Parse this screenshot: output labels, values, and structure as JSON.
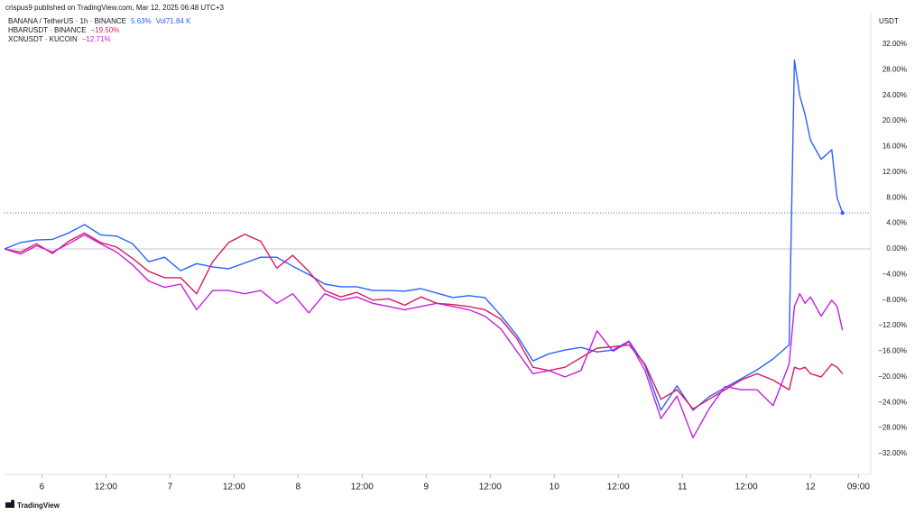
{
  "header": "crispus9 published on TradingView.com, Mar 12, 2025 06:48 UTC+3",
  "footer": "TradingView",
  "chart_data": {
    "type": "line",
    "y_axis_label": "USDT",
    "xlim": [
      -7,
      155.3
    ],
    "xticks": [
      {
        "value": 0,
        "label": "6"
      },
      {
        "value": 12,
        "label": "12:00"
      },
      {
        "value": 24,
        "label": "7"
      },
      {
        "value": 36,
        "label": "12:00"
      },
      {
        "value": 48,
        "label": "8"
      },
      {
        "value": 60,
        "label": "12:00"
      },
      {
        "value": 72,
        "label": "9"
      },
      {
        "value": 84,
        "label": "12:00"
      },
      {
        "value": 96,
        "label": "10"
      },
      {
        "value": 108,
        "label": "12:00"
      },
      {
        "value": 120,
        "label": "11"
      },
      {
        "value": 132,
        "label": "12:00"
      },
      {
        "value": 144,
        "label": "12"
      },
      {
        "value": 153,
        "label": "09:00"
      }
    ],
    "ylim": [
      -32,
      32
    ],
    "yticks": [
      {
        "value": 32,
        "label": "32.00%"
      },
      {
        "value": 28,
        "label": "28.00%"
      },
      {
        "value": 24,
        "label": "24.00%"
      },
      {
        "value": 20,
        "label": "20.00%"
      },
      {
        "value": 16,
        "label": "16.00%"
      },
      {
        "value": 12,
        "label": "12.00%"
      },
      {
        "value": 8,
        "label": "8.00%"
      },
      {
        "value": 4,
        "label": "4.00%"
      },
      {
        "value": 0,
        "label": "0.00%"
      },
      {
        "value": -4,
        "label": "−4.00%"
      },
      {
        "value": -8,
        "label": "−8.00%"
      },
      {
        "value": -12,
        "label": "−12.00%"
      },
      {
        "value": -16,
        "label": "−16.00%"
      },
      {
        "value": -20,
        "label": "−20.00%"
      },
      {
        "value": -24,
        "label": "−24.00%"
      },
      {
        "value": -28,
        "label": "−28.00%"
      },
      {
        "value": -32,
        "label": "−32.00%"
      }
    ],
    "x": [
      -7,
      -4,
      -1,
      2,
      5,
      8,
      11,
      14,
      17,
      20,
      23,
      26,
      29,
      32,
      35,
      38,
      41,
      44,
      47,
      50,
      53,
      56,
      59,
      62,
      65,
      68,
      71,
      74,
      77,
      80,
      83,
      86,
      89,
      92,
      95,
      98,
      101,
      104,
      107,
      110,
      113,
      116,
      119,
      122,
      125,
      128,
      131,
      134,
      137,
      140,
      141,
      142,
      143,
      144,
      146,
      148,
      149,
      150
    ],
    "series": [
      {
        "name": "BANANA / TetherUS · 1h · BINANCE",
        "color": "#2962ff",
        "legend_value": "5.63%",
        "volume_title": "Vol",
        "volume_label": "71.84 K",
        "values": [
          0,
          1,
          1.4,
          1.5,
          2.5,
          3.8,
          2.2,
          2,
          0.8,
          -2,
          -1.3,
          -3.4,
          -2.3,
          -2.8,
          -3.1,
          -2.2,
          -1.3,
          -1.3,
          -2.7,
          -4,
          -5.5,
          -5.9,
          -5.9,
          -6.5,
          -6.5,
          -6.6,
          -6.2,
          -6.9,
          -7.6,
          -7.3,
          -7.6,
          -10.4,
          -13.5,
          -17.5,
          -16.4,
          -15.8,
          -15.4,
          -16.1,
          -15.8,
          -14.4,
          -18.2,
          -25.2,
          -21.4,
          -25.2,
          -23.1,
          -21.7,
          -20.3,
          -18.9,
          -17.2,
          -15,
          29.5,
          24,
          21,
          17,
          14,
          15.5,
          8,
          5.63
        ]
      },
      {
        "name": "HBARUSDT · BINANCE",
        "color": "#d81b60",
        "legend_value": "−19.50%",
        "values": [
          0,
          -0.5,
          0.8,
          -0.7,
          1.2,
          2.5,
          1,
          0.3,
          -1.5,
          -3.5,
          -4.5,
          -4.5,
          -7,
          -2,
          1,
          2.3,
          1.2,
          -3,
          -1,
          -3.5,
          -6.5,
          -7.5,
          -6.8,
          -8,
          -7.8,
          -8.8,
          -7.5,
          -8.5,
          -8.7,
          -9,
          -9.5,
          -11,
          -14,
          -18.5,
          -19,
          -18.5,
          -17,
          -15.5,
          -15.3,
          -15,
          -18,
          -23.5,
          -22,
          -25,
          -23.5,
          -22,
          -20.5,
          -19.5,
          -20.5,
          -22,
          -18.5,
          -18.8,
          -18.5,
          -19.5,
          -20,
          -18,
          -18.5,
          -19.5
        ]
      },
      {
        "name": "XCNUSDT · KUCOIN",
        "color": "#c41fe0",
        "legend_value": "−12.71%",
        "values": [
          0,
          -0.8,
          0.5,
          -0.5,
          0.8,
          2.2,
          0.8,
          -0.5,
          -2.5,
          -5,
          -6,
          -5.5,
          -9.5,
          -6.5,
          -6.5,
          -7,
          -6.5,
          -8.5,
          -7,
          -10,
          -7,
          -8,
          -7.5,
          -8.5,
          -9,
          -9.5,
          -9,
          -8.5,
          -9,
          -9.5,
          -10.5,
          -12.5,
          -16,
          -19.5,
          -19,
          -20,
          -19,
          -12.8,
          -16,
          -14.5,
          -19,
          -26.5,
          -23,
          -29.5,
          -25,
          -21.5,
          -22,
          -22,
          -24.5,
          -18,
          -9,
          -7,
          -8.5,
          -7.5,
          -10.5,
          -8,
          -9,
          -12.71
        ]
      }
    ]
  }
}
